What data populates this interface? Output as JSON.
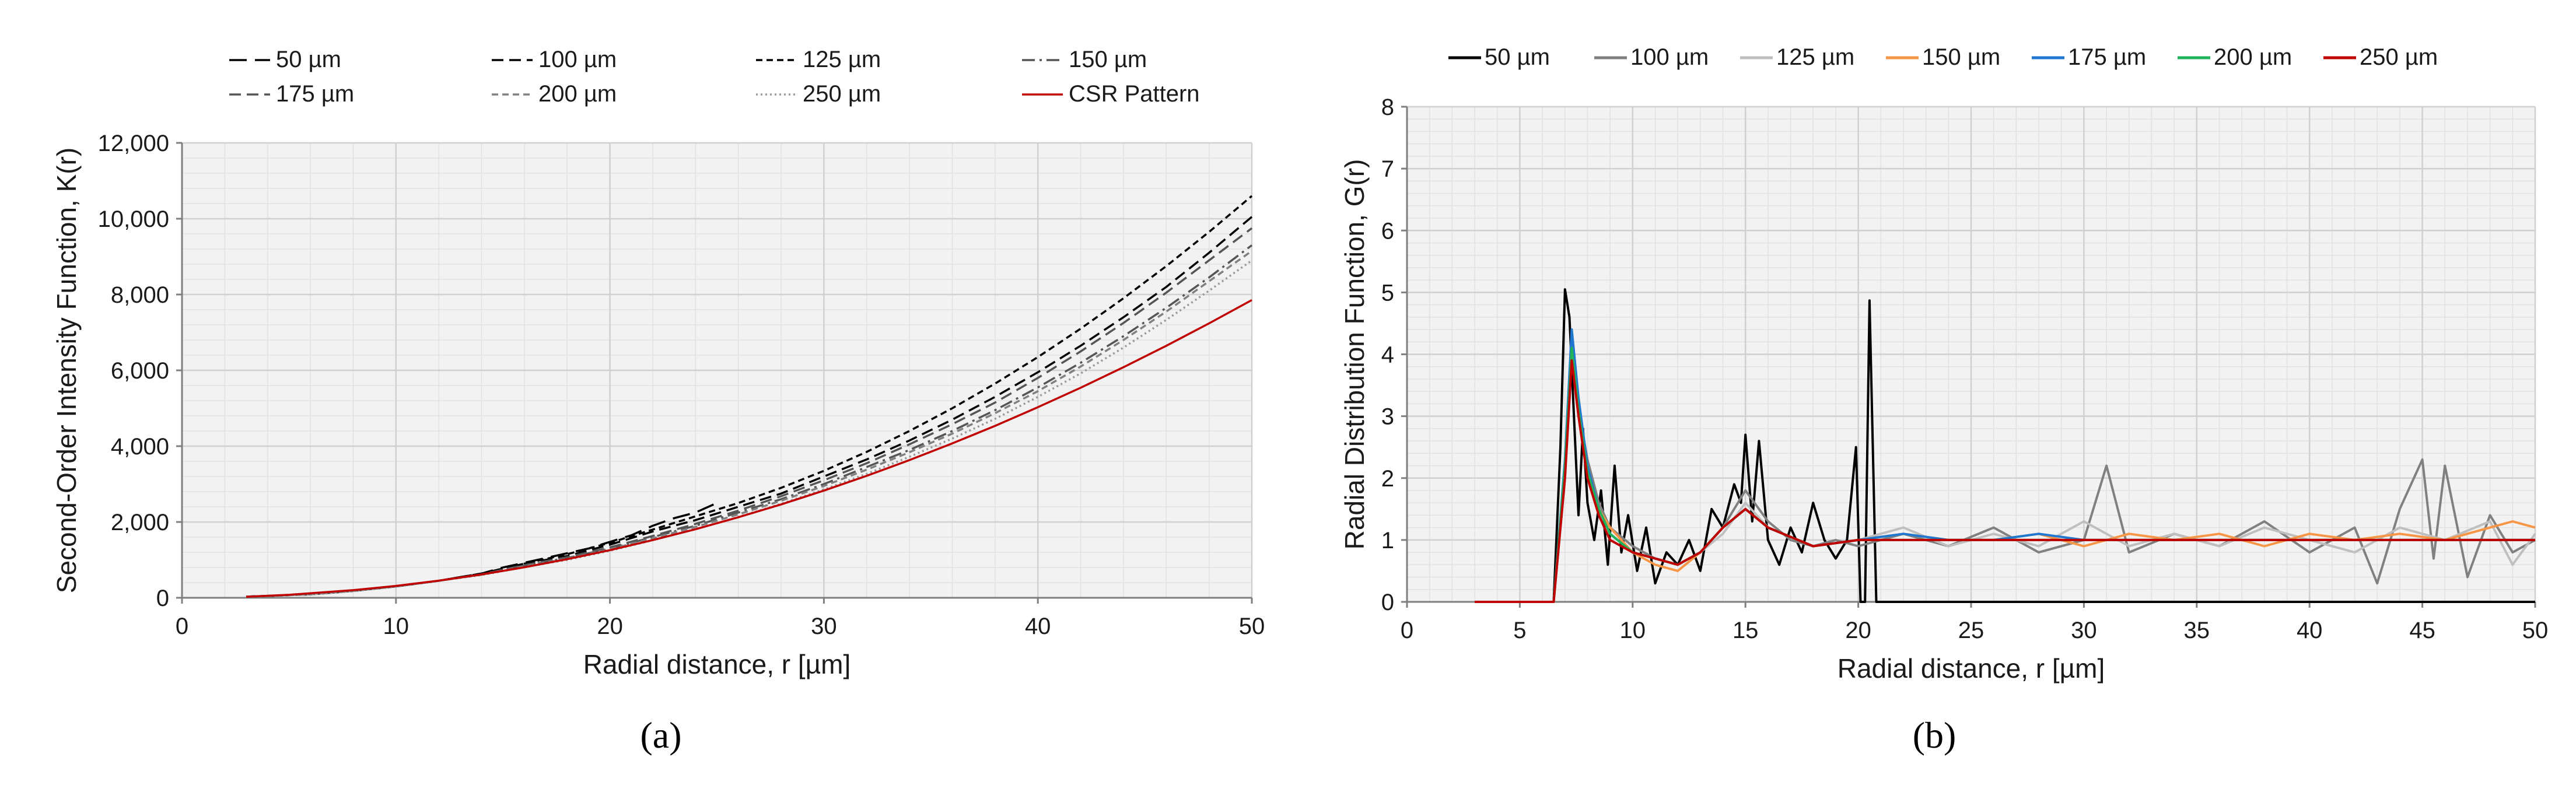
{
  "chart_data": [
    {
      "type": "line",
      "panel_label": "(a)",
      "title": "",
      "xlabel": "Radial distance, r [µm]",
      "ylabel": "Second-Order Intensity Function, K(r)",
      "xlim": [
        0,
        50
      ],
      "ylim": [
        0,
        12000
      ],
      "grid": true,
      "legend_position": "top",
      "x_ticks": [
        "0",
        "10",
        "20",
        "30",
        "40",
        "50"
      ],
      "y_ticks": [
        "0",
        "2,000",
        "4,000",
        "6,000",
        "8,000",
        "10,000",
        "12,000"
      ],
      "series": [
        {
          "name": "50 µm",
          "color": "#000000",
          "dash": "long-dash",
          "x": [
            3,
            6,
            8,
            10,
            12,
            14,
            15,
            17,
            19,
            21,
            22,
            23,
            24,
            25
          ],
          "y": [
            30,
            90,
            180,
            300,
            450,
            640,
            800,
            1050,
            1300,
            1650,
            1900,
            2100,
            2250,
            2500
          ]
        },
        {
          "name": "100 µm",
          "color": "#000000",
          "dash": "dash",
          "x": [
            3,
            6,
            8,
            10,
            12,
            14,
            16,
            18,
            20,
            22,
            24,
            26,
            28,
            30,
            32,
            34,
            36,
            38,
            40,
            42,
            44,
            46,
            48,
            50
          ],
          "y": [
            30,
            90,
            180,
            300,
            450,
            640,
            900,
            1100,
            1400,
            1750,
            2050,
            2400,
            2750,
            3200,
            3650,
            4150,
            4700,
            5300,
            5950,
            6650,
            7400,
            8200,
            9100,
            10050
          ]
        },
        {
          "name": "125 µm",
          "color": "#000000",
          "dash": "short-dash",
          "x": [
            3,
            6,
            8,
            10,
            12,
            14,
            16,
            18,
            20,
            22,
            24,
            26,
            28,
            30,
            32,
            34,
            36,
            38,
            40,
            42,
            44,
            46,
            48,
            50
          ],
          "y": [
            30,
            90,
            180,
            300,
            450,
            640,
            900,
            1150,
            1450,
            1800,
            2150,
            2500,
            2900,
            3350,
            3850,
            4400,
            5000,
            5650,
            6350,
            7100,
            7900,
            8750,
            9650,
            10600
          ]
        },
        {
          "name": "150 µm",
          "color": "#555555",
          "dash": "dash-dot",
          "x": [
            3,
            6,
            8,
            10,
            12,
            14,
            16,
            18,
            20,
            22,
            24,
            26,
            28,
            30,
            32,
            34,
            36,
            38,
            40,
            42,
            44,
            46,
            48,
            50
          ],
          "y": [
            30,
            90,
            180,
            300,
            450,
            620,
            850,
            1050,
            1300,
            1600,
            1900,
            2250,
            2600,
            3000,
            3450,
            3900,
            4400,
            4950,
            5550,
            6200,
            6900,
            7650,
            8450,
            9300
          ]
        },
        {
          "name": "175 µm",
          "color": "#555555",
          "dash": "dash",
          "x": [
            3,
            6,
            8,
            10,
            12,
            14,
            16,
            18,
            20,
            22,
            24,
            26,
            28,
            30,
            32,
            34,
            36,
            38,
            40,
            42,
            44,
            46,
            48,
            50
          ],
          "y": [
            30,
            90,
            180,
            300,
            450,
            620,
            860,
            1070,
            1330,
            1630,
            1950,
            2300,
            2680,
            3100,
            3550,
            4050,
            4580,
            5150,
            5800,
            6500,
            7250,
            8050,
            8900,
            9750
          ]
        },
        {
          "name": "200 µm",
          "color": "#808080",
          "dash": "short-dash",
          "x": [
            3,
            6,
            8,
            10,
            12,
            14,
            16,
            18,
            20,
            22,
            24,
            26,
            28,
            30,
            32,
            34,
            36,
            38,
            40,
            42,
            44,
            46,
            48,
            50
          ],
          "y": [
            30,
            90,
            180,
            300,
            450,
            610,
            830,
            1030,
            1280,
            1570,
            1870,
            2200,
            2560,
            2950,
            3380,
            3840,
            4330,
            4870,
            5450,
            6100,
            6800,
            7550,
            8350,
            9150
          ]
        },
        {
          "name": "250 µm",
          "color": "#9a9a9a",
          "dash": "dot",
          "x": [
            3,
            6,
            8,
            10,
            12,
            14,
            16,
            18,
            20,
            22,
            24,
            26,
            28,
            30,
            32,
            34,
            36,
            38,
            40,
            42,
            44,
            46,
            48,
            50
          ],
          "y": [
            30,
            90,
            180,
            300,
            450,
            600,
            810,
            1000,
            1240,
            1520,
            1810,
            2130,
            2480,
            2860,
            3270,
            3720,
            4200,
            4720,
            5300,
            5920,
            6600,
            7330,
            8100,
            8900
          ]
        },
        {
          "name": "CSR Pattern",
          "color": "#c00000",
          "dash": "solid",
          "x": [
            3,
            5,
            8,
            10,
            12,
            14,
            16,
            18,
            20,
            22,
            24,
            26,
            28,
            30,
            32,
            34,
            36,
            38,
            40,
            42,
            44,
            46,
            48,
            50
          ],
          "y": [
            28,
            79,
            201,
            314,
            452,
            616,
            804,
            1018,
            1257,
            1521,
            1810,
            2124,
            2463,
            2827,
            3217,
            3632,
            4072,
            4536,
            5027,
            5542,
            6082,
            6648,
            7238,
            7854
          ]
        }
      ]
    },
    {
      "type": "line",
      "panel_label": "(b)",
      "title": "",
      "xlabel": "Radial distance, r [µm]",
      "ylabel": "Radial Distribution Function, G(r)",
      "xlim": [
        0,
        50
      ],
      "ylim": [
        0,
        8
      ],
      "grid": true,
      "legend_position": "top",
      "x_ticks": [
        "0",
        "5",
        "10",
        "15",
        "20",
        "25",
        "30",
        "35",
        "40",
        "45",
        "50"
      ],
      "y_ticks": [
        "0",
        "1",
        "2",
        "3",
        "4",
        "5",
        "6",
        "7",
        "8"
      ],
      "series": [
        {
          "name": "50 µm",
          "color": "#000000",
          "x": [
            3,
            6.5,
            6.8,
            7.0,
            7.2,
            7.4,
            7.6,
            7.8,
            8.0,
            8.3,
            8.6,
            8.9,
            9.2,
            9.5,
            9.8,
            10.2,
            10.6,
            11.0,
            11.5,
            12.0,
            12.5,
            13.0,
            13.5,
            14.0,
            14.5,
            14.8,
            15.0,
            15.3,
            15.6,
            16.0,
            16.5,
            17.0,
            17.5,
            18.0,
            18.5,
            19.0,
            19.5,
            19.9,
            20.1,
            20.3,
            20.5,
            20.8,
            21.0,
            50
          ],
          "y": [
            0,
            0,
            2.5,
            5.05,
            4.6,
            3.0,
            1.4,
            2.8,
            1.6,
            1.0,
            1.8,
            0.6,
            2.2,
            0.8,
            1.4,
            0.5,
            1.2,
            0.3,
            0.8,
            0.6,
            1.0,
            0.5,
            1.5,
            1.2,
            1.9,
            1.6,
            2.7,
            1.3,
            2.6,
            1.0,
            0.6,
            1.2,
            0.8,
            1.6,
            1.0,
            0.7,
            1.0,
            2.5,
            0,
            0,
            4.87,
            0,
            0,
            0
          ]
        },
        {
          "name": "100 µm",
          "color": "#808080",
          "x": [
            3,
            6.5,
            7.0,
            7.3,
            7.6,
            8.0,
            8.5,
            9,
            10,
            11,
            12,
            13,
            14,
            15,
            16,
            17,
            18,
            19,
            20,
            22,
            24,
            26,
            28,
            30,
            31,
            32,
            34,
            36,
            38,
            40,
            42,
            43,
            44,
            45,
            45.5,
            46,
            47,
            48,
            49,
            50
          ],
          "y": [
            0,
            0,
            2.0,
            4.2,
            3.1,
            2.3,
            1.6,
            1.2,
            0.9,
            0.7,
            0.6,
            0.8,
            1.2,
            1.8,
            1.3,
            1.0,
            0.9,
            1.0,
            0.9,
            1.1,
            0.9,
            1.2,
            0.8,
            1.0,
            2.2,
            0.8,
            1.1,
            0.9,
            1.3,
            0.8,
            1.2,
            0.3,
            1.5,
            2.3,
            0.7,
            2.2,
            0.4,
            1.4,
            0.8,
            1.0
          ]
        },
        {
          "name": "125 µm",
          "color": "#bfbfbf",
          "x": [
            3,
            6.5,
            7.0,
            7.3,
            7.6,
            8.0,
            8.5,
            9,
            10,
            11,
            12,
            13,
            14,
            15,
            16,
            18,
            20,
            22,
            24,
            26,
            28,
            30,
            32,
            34,
            36,
            38,
            40,
            42,
            44,
            46,
            48,
            49,
            50
          ],
          "y": [
            0,
            0,
            2.1,
            4.1,
            3.0,
            2.1,
            1.5,
            1.1,
            0.8,
            0.7,
            0.6,
            0.8,
            1.1,
            1.6,
            1.2,
            0.9,
            1.0,
            1.2,
            0.9,
            1.1,
            0.9,
            1.3,
            0.9,
            1.1,
            0.9,
            1.2,
            1.0,
            0.8,
            1.2,
            1.0,
            1.3,
            0.6,
            1.1
          ]
        },
        {
          "name": "150 µm",
          "color": "#f79646",
          "x": [
            3,
            6.5,
            7.0,
            7.3,
            7.6,
            8.0,
            8.5,
            9,
            10,
            11,
            12,
            13,
            14,
            15,
            16,
            18,
            20,
            22,
            24,
            26,
            28,
            30,
            32,
            34,
            36,
            38,
            40,
            42,
            44,
            46,
            48,
            49,
            50
          ],
          "y": [
            0,
            0,
            2.2,
            4.0,
            3.2,
            2.2,
            1.5,
            1.2,
            0.8,
            0.6,
            0.5,
            0.8,
            1.2,
            1.5,
            1.2,
            0.9,
            1.0,
            1.1,
            1.0,
            1.0,
            1.1,
            0.9,
            1.1,
            1.0,
            1.1,
            0.9,
            1.1,
            1.0,
            1.1,
            1.0,
            1.2,
            1.3,
            1.2
          ]
        },
        {
          "name": "175 µm",
          "color": "#1f77d0",
          "x": [
            3,
            6.5,
            7.0,
            7.3,
            7.6,
            8.0,
            8.5,
            9,
            10,
            11,
            12,
            13,
            14,
            15,
            16,
            18,
            20,
            22,
            24,
            26,
            28,
            30,
            32,
            34,
            36,
            38,
            40,
            42,
            44,
            46,
            48,
            50
          ],
          "y": [
            0,
            0,
            2.3,
            4.4,
            3.3,
            2.2,
            1.5,
            1.1,
            0.8,
            0.7,
            0.6,
            0.8,
            1.2,
            1.5,
            1.2,
            0.9,
            1.0,
            1.1,
            1.0,
            1.0,
            1.1,
            1.0,
            1.0,
            1.0,
            1.0,
            1.0,
            1.0,
            1.0,
            1.0,
            1.0,
            1.0,
            1.0
          ]
        },
        {
          "name": "200 µm",
          "color": "#21b35a",
          "x": [
            3,
            6.5,
            7.0,
            7.3,
            7.6,
            8.0,
            8.5,
            9,
            10,
            11,
            12,
            13,
            14,
            15,
            16,
            18,
            20,
            22,
            24,
            26,
            28,
            30,
            32,
            34,
            36,
            38,
            40,
            42,
            44,
            46,
            48,
            50
          ],
          "y": [
            0,
            0,
            2.2,
            4.1,
            3.1,
            2.1,
            1.5,
            1.1,
            0.8,
            0.7,
            0.6,
            0.8,
            1.2,
            1.5,
            1.2,
            0.9,
            1.0,
            1.0,
            1.0,
            1.0,
            1.0,
            1.0,
            1.0,
            1.0,
            1.0,
            1.0,
            1.0,
            1.0,
            1.0,
            1.0,
            1.0,
            1.0
          ]
        },
        {
          "name": "250 µm",
          "color": "#c00000",
          "x": [
            3,
            6.5,
            7.0,
            7.3,
            7.6,
            8.0,
            8.5,
            9,
            10,
            11,
            12,
            13,
            14,
            15,
            16,
            18,
            20,
            22,
            24,
            26,
            28,
            30,
            32,
            34,
            36,
            38,
            40,
            42,
            44,
            46,
            48,
            50
          ],
          "y": [
            0,
            0,
            2.0,
            3.9,
            3.0,
            2.0,
            1.4,
            1.0,
            0.8,
            0.7,
            0.6,
            0.8,
            1.2,
            1.5,
            1.2,
            0.9,
            1.0,
            1.0,
            1.0,
            1.0,
            1.0,
            1.0,
            1.0,
            1.0,
            1.0,
            1.0,
            1.0,
            1.0,
            1.0,
            1.0,
            1.0,
            1.0
          ]
        }
      ]
    }
  ]
}
